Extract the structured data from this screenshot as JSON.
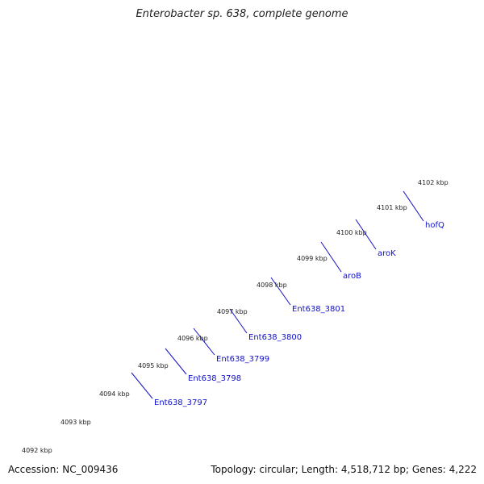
{
  "title": "Enterobacter sp. 638, complete genome",
  "footer": {
    "accession": "Accession: NC_009436",
    "summary": "Topology: circular; Length: 4,518,712 bp; Genes: 4,222"
  },
  "ticks": [
    "4092 kbp",
    "4093 kbp",
    "4094 kbp",
    "4095 kbp",
    "4096 kbp",
    "4097 kbp",
    "4098 kbp",
    "4099 kbp",
    "4100 kbp",
    "4101 kbp",
    "4102 kbp"
  ],
  "gene_labels": [
    "Ent638_3797",
    "Ent638_3798",
    "Ent638_3799",
    "Ent638_3800",
    "Ent638_3801",
    "aroB",
    "aroK",
    "hofQ"
  ],
  "colors": {
    "cds": "#0000ee",
    "rev_cds": "#ee0000",
    "dark_purple": "#3a3a7a",
    "backbone": "#777777",
    "ticks": "#1e8a1e",
    "label": "#1010c8",
    "genes": [
      "#f0909a",
      "#cccccc",
      "#20c8cc",
      "#ff1fa0",
      "#6a6a6a",
      "#4f85bf",
      "#4f85bf",
      "#a8f038",
      "#5cc42a"
    ]
  }
}
